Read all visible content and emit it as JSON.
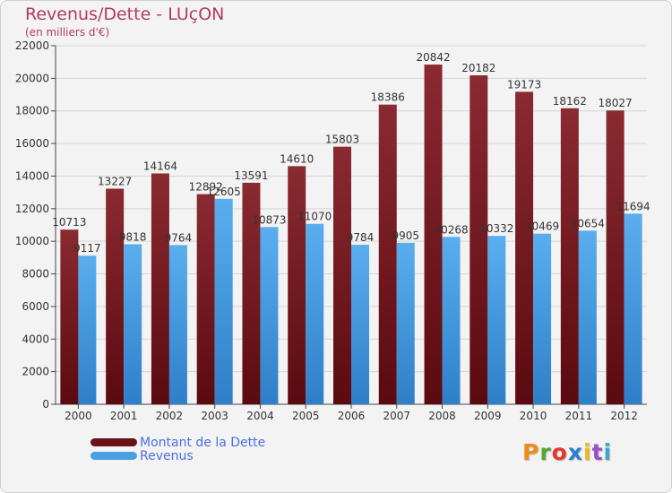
{
  "title": "Revenus/Dette - LUçON",
  "subtitle": "(en milliers d'€)",
  "logo_text": "Proxiti",
  "colors": {
    "dette": "#7b1a22",
    "revenus": "#4a9fe3",
    "title": "#b03a67",
    "legend_text": "#4a6fe0"
  },
  "chart_data": {
    "type": "bar",
    "title": "Revenus/Dette - LUçON",
    "subtitle": "(en milliers d'€)",
    "xlabel": "",
    "ylabel": "",
    "ylim": [
      0,
      22000
    ],
    "yticks": [
      0,
      2000,
      4000,
      6000,
      8000,
      10000,
      12000,
      14000,
      16000,
      18000,
      20000,
      22000
    ],
    "grid": true,
    "legend_position": "bottom-left",
    "categories": [
      "2000",
      "2001",
      "2002",
      "2003",
      "2004",
      "2005",
      "2006",
      "2007",
      "2008",
      "2009",
      "2010",
      "2011",
      "2012"
    ],
    "series": [
      {
        "name": "Montant de la Dette",
        "values": [
          10713,
          13227,
          14164,
          12892,
          13591,
          14610,
          15803,
          18386,
          20842,
          20182,
          19173,
          18162,
          18027
        ]
      },
      {
        "name": "Revenus",
        "values": [
          9117,
          9818,
          9764,
          12605,
          10873,
          11070,
          9784,
          9905,
          10268,
          10332,
          10469,
          10654,
          11694
        ]
      }
    ]
  }
}
